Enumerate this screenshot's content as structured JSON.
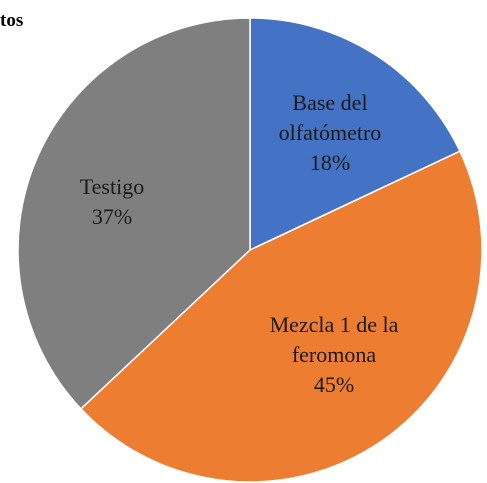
{
  "chart_data": {
    "type": "pie",
    "title": "tos",
    "categories": [
      "Base del olfatómetro",
      "Mezcla 1 de la feromona",
      "Testigo"
    ],
    "values": [
      18,
      45,
      37
    ],
    "value_labels": [
      "18%",
      "45%",
      "37%"
    ],
    "colors": [
      "#4472c4",
      "#ed7d31",
      "#7f7f7f"
    ]
  }
}
